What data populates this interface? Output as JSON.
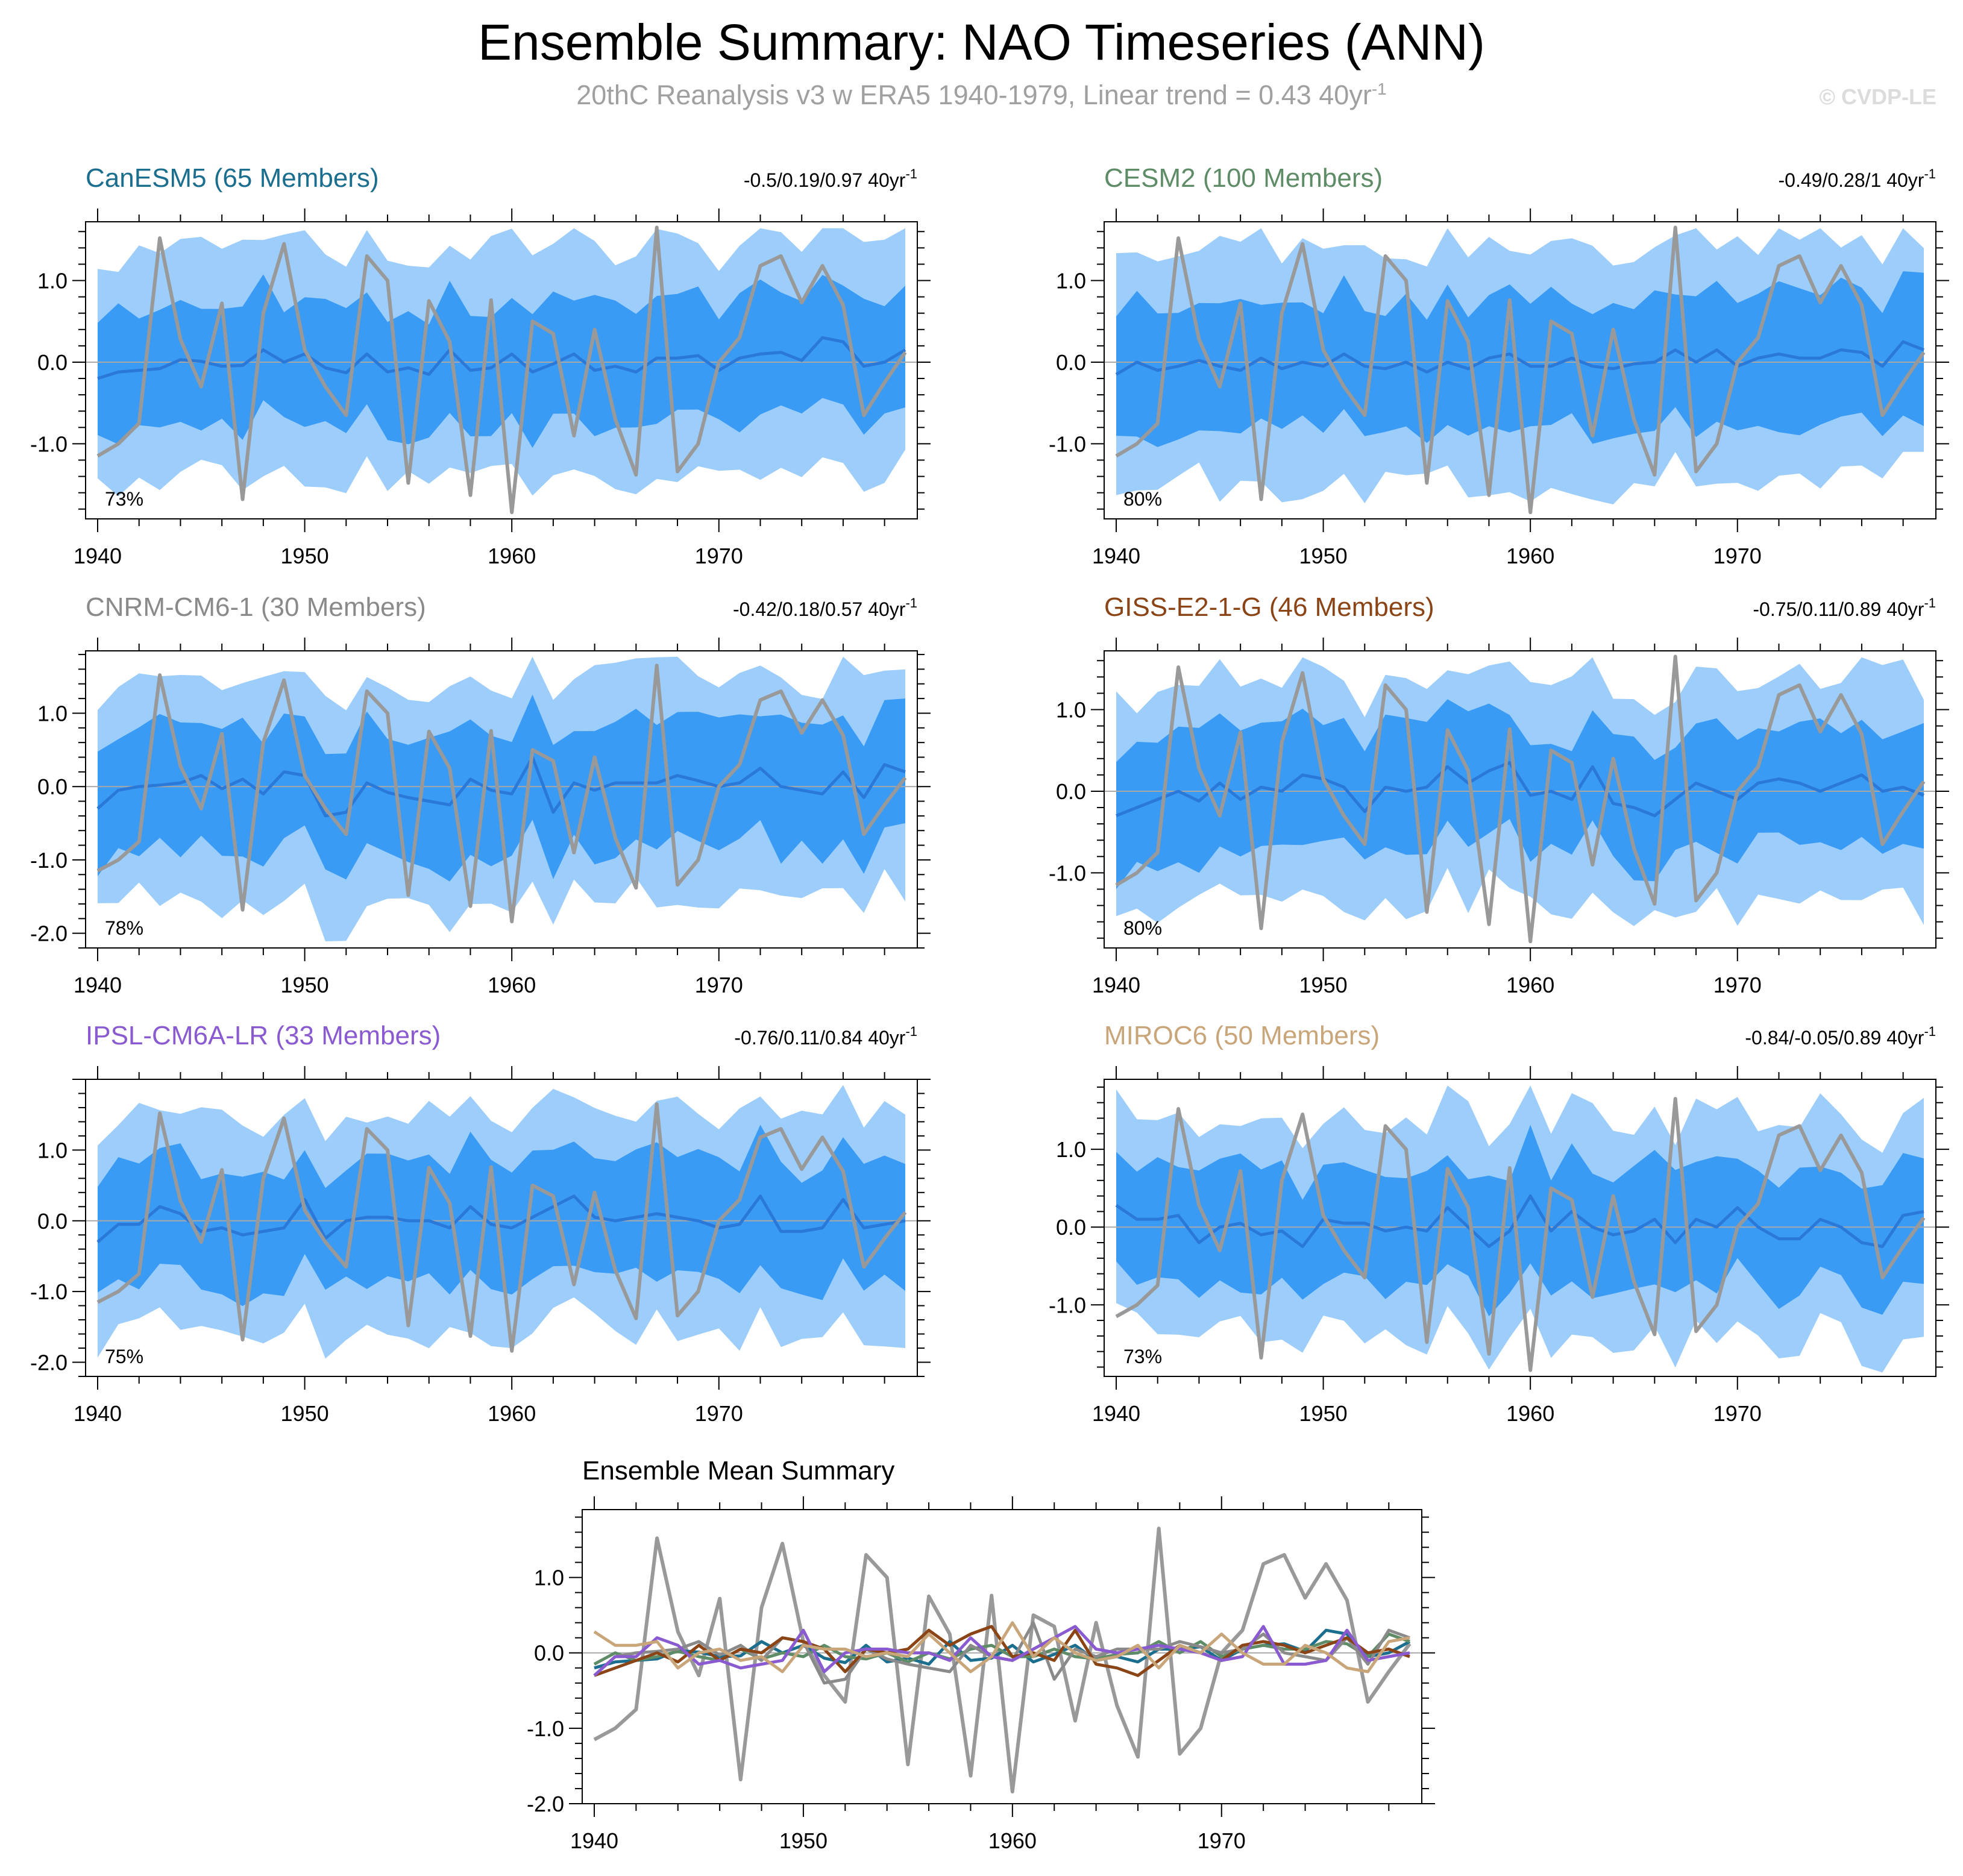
{
  "figure": {
    "title": "Ensemble Summary: NAO Timeseries (ANN)",
    "subtitle": "20thC Reanalysis v3 w ERA5 1940-1979, Linear trend = 0.43 40yr",
    "subtitle_exp": "-1",
    "watermark": "© CVDP-LE"
  },
  "colors": {
    "band_outer": "#9dcdfb",
    "band_inner": "#3a9bf5",
    "ens_mean": "#2a78d8",
    "observed": "#999999",
    "zero_line": "#a8a8a8",
    "CanESM5": "#1b6e8e",
    "CESM2": "#5e8c66",
    "CNRM-CM6-1": "#8a8a8a",
    "GISS-E2-1-G": "#8a4416",
    "IPSL-CM6A-LR": "#8a5ad0",
    "MIROC6": "#c9a57a"
  },
  "chart_data": {
    "type": "line",
    "years": [
      1940,
      1941,
      1942,
      1943,
      1944,
      1945,
      1946,
      1947,
      1948,
      1949,
      1950,
      1951,
      1952,
      1953,
      1954,
      1955,
      1956,
      1957,
      1958,
      1959,
      1960,
      1961,
      1962,
      1963,
      1964,
      1965,
      1966,
      1967,
      1968,
      1969,
      1970,
      1971,
      1972,
      1973,
      1974,
      1975,
      1976,
      1977,
      1978,
      1979
    ],
    "x_ticks": [
      "1940",
      "1950",
      "1960",
      "1970"
    ],
    "observed": [
      -1.15,
      -1.0,
      -0.75,
      1.52,
      0.28,
      -0.3,
      0.72,
      -1.68,
      0.6,
      1.45,
      0.15,
      -0.3,
      -0.65,
      1.3,
      1.0,
      -1.48,
      0.75,
      0.25,
      -1.63,
      0.76,
      -1.84,
      0.5,
      0.35,
      -0.9,
      0.4,
      -0.7,
      -1.38,
      1.65,
      -1.34,
      -1.0,
      0.0,
      0.3,
      1.18,
      1.3,
      0.73,
      1.18,
      0.7,
      -0.65,
      -0.25,
      0.12
    ],
    "panels": [
      {
        "model": "CanESM5",
        "label": "CanESM5 (65 Members)",
        "trend": "-0.5/0.19/0.97 40yr",
        "trend_exp": "-1",
        "pct": "73%",
        "y_ticks": [
          "1.0",
          "0.0",
          "-1.0"
        ],
        "y_tick_values": [
          1.0,
          0.0,
          -1.0
        ],
        "ylim": [
          -1.92,
          1.72
        ],
        "mean": [
          -0.2,
          -0.12,
          -0.1,
          -0.08,
          0.03,
          0.01,
          -0.05,
          -0.04,
          0.15,
          0.0,
          0.1,
          -0.07,
          -0.13,
          0.1,
          -0.12,
          -0.07,
          -0.15,
          0.15,
          -0.1,
          -0.07,
          0.1,
          -0.12,
          -0.02,
          0.1,
          -0.1,
          -0.05,
          -0.12,
          0.05,
          0.05,
          0.08,
          -0.1,
          0.05,
          0.1,
          0.12,
          0.02,
          0.3,
          0.25,
          -0.05,
          0.0,
          0.15
        ],
        "inner_hw": 0.75,
        "outer_hw": 1.45,
        "noise_seed": 11
      },
      {
        "model": "CESM2",
        "label": "CESM2 (100 Members)",
        "trend": "-0.49/0.28/1 40yr",
        "trend_exp": "-1",
        "pct": "80%",
        "y_ticks": [
          "1.0",
          "0.0",
          "-1.0"
        ],
        "y_tick_values": [
          1.0,
          0.0,
          -1.0
        ],
        "ylim": [
          -1.92,
          1.72
        ],
        "mean": [
          -0.15,
          0.0,
          -0.1,
          -0.05,
          0.02,
          -0.05,
          -0.1,
          0.05,
          -0.08,
          0.0,
          -0.05,
          0.1,
          -0.05,
          -0.08,
          0.0,
          -0.12,
          0.0,
          -0.08,
          0.05,
          0.1,
          -0.05,
          -0.05,
          0.05,
          -0.05,
          -0.08,
          -0.02,
          0.0,
          0.15,
          0.0,
          0.15,
          -0.05,
          0.05,
          0.1,
          0.05,
          0.05,
          0.15,
          0.12,
          -0.05,
          0.25,
          0.15
        ],
        "inner_hw": 0.78,
        "outer_hw": 1.5,
        "noise_seed": 23
      },
      {
        "model": "CNRM-CM6-1",
        "label": "CNRM-CM6-1 (30 Members)",
        "trend": "-0.42/0.18/0.57 40yr",
        "trend_exp": "-1",
        "pct": "78%",
        "y_ticks": [
          "1.0",
          "0.0",
          "-1.0",
          "-2.0"
        ],
        "y_tick_values": [
          1.0,
          0.0,
          -1.0,
          -2.0
        ],
        "ylim": [
          -2.2,
          1.85
        ],
        "mean": [
          -0.3,
          -0.05,
          0.0,
          0.02,
          0.05,
          0.15,
          -0.03,
          0.1,
          -0.1,
          0.2,
          0.15,
          -0.4,
          -0.35,
          0.05,
          -0.08,
          -0.15,
          -0.2,
          -0.25,
          0.1,
          -0.05,
          -0.1,
          0.4,
          -0.35,
          0.05,
          -0.05,
          0.05,
          0.05,
          0.05,
          0.15,
          0.08,
          0.0,
          0.05,
          0.25,
          0.0,
          -0.05,
          -0.1,
          0.2,
          -0.15,
          0.3,
          0.2
        ],
        "inner_hw": 0.85,
        "outer_hw": 1.55,
        "noise_seed": 37
      },
      {
        "model": "GISS-E2-1-G",
        "label": "GISS-E2-1-G (46 Members)",
        "trend": "-0.75/0.11/0.89 40yr",
        "trend_exp": "-1",
        "pct": "80%",
        "y_ticks": [
          "1.0",
          "0.0",
          "-1.0"
        ],
        "y_tick_values": [
          1.0,
          0.0,
          -1.0
        ],
        "ylim": [
          -1.92,
          1.72
        ],
        "mean": [
          -0.3,
          -0.2,
          -0.1,
          0.0,
          -0.12,
          0.1,
          -0.1,
          0.05,
          0.0,
          0.2,
          0.15,
          0.05,
          -0.25,
          0.05,
          0.0,
          0.05,
          0.3,
          0.1,
          0.25,
          0.35,
          -0.05,
          0.0,
          -0.1,
          0.3,
          -0.15,
          -0.2,
          -0.3,
          -0.1,
          0.1,
          0.0,
          -0.1,
          0.1,
          0.15,
          0.1,
          0.0,
          0.1,
          0.2,
          0.0,
          0.05,
          -0.05
        ],
        "inner_hw": 0.72,
        "outer_hw": 1.4,
        "noise_seed": 41
      },
      {
        "model": "IPSL-CM6A-LR",
        "label": "IPSL-CM6A-LR (33 Members)",
        "trend": "-0.76/0.11/0.84 40yr",
        "trend_exp": "-1",
        "pct": "75%",
        "y_ticks": [
          "1.0",
          "0.0",
          "-1.0",
          "-2.0"
        ],
        "y_tick_values": [
          1.0,
          0.0,
          -1.0,
          -2.0
        ],
        "ylim": [
          -2.2,
          2.0
        ],
        "mean": [
          -0.3,
          -0.05,
          -0.05,
          0.2,
          0.1,
          -0.15,
          -0.1,
          -0.2,
          -0.15,
          -0.1,
          0.3,
          -0.25,
          0.0,
          0.05,
          0.05,
          0.0,
          0.0,
          -0.1,
          0.2,
          -0.05,
          -0.1,
          0.05,
          0.2,
          0.35,
          0.05,
          0.0,
          0.05,
          0.1,
          0.05,
          0.0,
          -0.1,
          -0.05,
          0.35,
          -0.15,
          -0.15,
          -0.1,
          0.3,
          -0.1,
          -0.05,
          0.0
        ],
        "inner_hw": 0.85,
        "outer_hw": 1.6,
        "noise_seed": 53
      },
      {
        "model": "MIROC6",
        "label": "MIROC6 (50 Members)",
        "trend": "-0.84/-0.05/0.89 40yr",
        "trend_exp": "-1",
        "pct": "73%",
        "y_ticks": [
          "1.0",
          "0.0",
          "-1.0"
        ],
        "y_tick_values": [
          1.0,
          0.0,
          -1.0
        ],
        "ylim": [
          -1.92,
          1.9
        ],
        "mean": [
          0.28,
          0.1,
          0.1,
          0.15,
          -0.2,
          0.0,
          0.05,
          -0.1,
          -0.05,
          -0.25,
          0.1,
          0.05,
          0.05,
          -0.05,
          0.0,
          -0.05,
          0.25,
          0.0,
          -0.25,
          -0.05,
          0.4,
          -0.05,
          0.2,
          0.0,
          -0.1,
          -0.05,
          0.1,
          -0.2,
          0.1,
          0.0,
          0.25,
          0.0,
          -0.15,
          -0.15,
          0.1,
          0.0,
          -0.2,
          -0.25,
          0.15,
          0.2
        ],
        "inner_hw": 0.75,
        "outer_hw": 1.45,
        "noise_seed": 67
      }
    ],
    "summary": {
      "title": "Ensemble Mean Summary",
      "y_ticks": [
        "1.0",
        "0.0",
        "-1.0",
        "-2.0"
      ],
      "y_tick_values": [
        1.0,
        0.0,
        -1.0,
        -2.0
      ],
      "ylim": [
        -2.0,
        1.9
      ]
    }
  }
}
